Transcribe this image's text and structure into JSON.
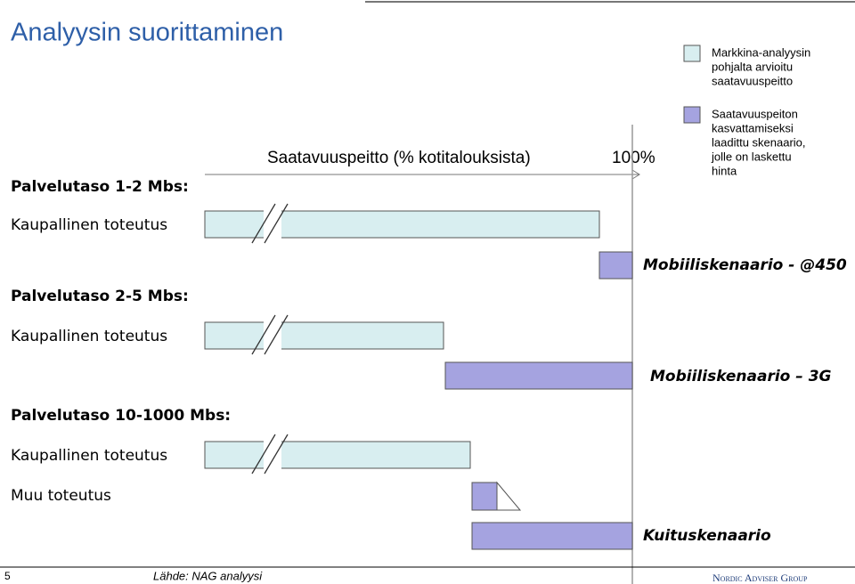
{
  "header": {
    "title": "Analyysin suorittaminen"
  },
  "legend": [
    {
      "lines": [
        "Markkina-analyysin",
        "pohjalta arvioitu",
        "saatavuuspeitto"
      ]
    },
    {
      "lines": [
        "Saatavuuspeiton",
        "kasvattamiseksi",
        "laadittu skenaario,",
        "jolle on laskettu",
        "hinta"
      ]
    }
  ],
  "axis": {
    "label": "Saatavuuspeitto (% kotitalouksista)",
    "end": "100%"
  },
  "rows": [
    {
      "heading": "Palvelutaso 1-2 Mbs:",
      "commercial": "Kaupallinen toteutus",
      "scenario": "Mobiiliskenaario - @450"
    },
    {
      "heading": "Palvelutaso 2-5 Mbs:",
      "commercial": "Kaupallinen toteutus",
      "scenario": "Mobiiliskenaario – 3G"
    },
    {
      "heading": "Palvelutaso 10-1000 Mbs:",
      "commercial": "Kaupallinen toteutus",
      "other": "Muu toteutus",
      "scenario": "Kuituskenaario"
    }
  ],
  "footer": {
    "page": "5",
    "source": "Lähde: NAG analyysi",
    "brand": "Nordic Adviser Group"
  }
}
